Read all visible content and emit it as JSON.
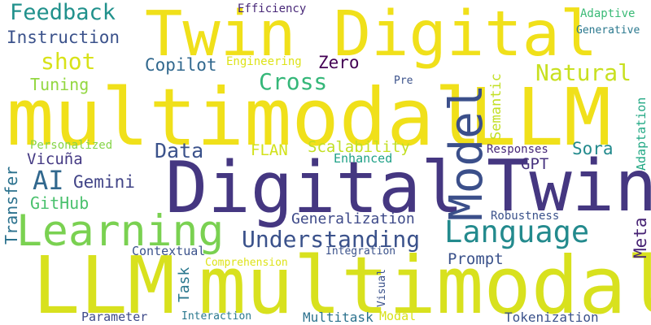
{
  "word_cloud": {
    "words": [
      {
        "id": "multimodal-1",
        "text": "multimodal",
        "color": "#f0e01a"
      },
      {
        "id": "multimodal-2",
        "text": "multimodal",
        "color": "#d8e11e"
      },
      {
        "id": "llm-1",
        "text": "LLM",
        "color": "#f0e01a"
      },
      {
        "id": "llm-2",
        "text": "LLM",
        "color": "#d8e11e"
      },
      {
        "id": "twin-digital",
        "text": "Twin Digital",
        "color": "#f0e01a"
      },
      {
        "id": "digital",
        "text": "Digital",
        "color": "#453781"
      },
      {
        "id": "twin",
        "text": "Twin",
        "color": "#453781"
      },
      {
        "id": "model",
        "text": "Model",
        "color": "#3b4f8a"
      },
      {
        "id": "learning",
        "text": "Learning",
        "color": "#7ad151"
      },
      {
        "id": "language",
        "text": "Language",
        "color": "#238a8d"
      },
      {
        "id": "understanding",
        "text": "Understanding",
        "color": "#3b528b"
      },
      {
        "id": "feedback",
        "text": "Feedback",
        "color": "#21918c"
      },
      {
        "id": "instruction",
        "text": "Instruction",
        "color": "#3b528b"
      },
      {
        "id": "shot",
        "text": "shot",
        "color": "#d8e219"
      },
      {
        "id": "copilot",
        "text": "Copilot",
        "color": "#31688e"
      },
      {
        "id": "engineering",
        "text": "Engineering",
        "color": "#dde318"
      },
      {
        "id": "zero",
        "text": "Zero",
        "color": "#440154"
      },
      {
        "id": "cross",
        "text": "Cross",
        "color": "#35b779"
      },
      {
        "id": "natural",
        "text": "Natural",
        "color": "#c8e020"
      },
      {
        "id": "tuning",
        "text": "Tuning",
        "color": "#93d741"
      },
      {
        "id": "efficiency",
        "text": "Efficiency",
        "color": "#482878"
      },
      {
        "id": "adaptive",
        "text": "Adaptive",
        "color": "#3aba76"
      },
      {
        "id": "generative",
        "text": "Generative",
        "color": "#2a788e"
      },
      {
        "id": "pre",
        "text": "Pre",
        "color": "#3b528b"
      },
      {
        "id": "semantic",
        "text": "Semantic",
        "color": "#c2df23"
      },
      {
        "id": "adaptation",
        "text": "Adaptation",
        "color": "#22a884"
      },
      {
        "id": "personalized",
        "text": "Personalized",
        "color": "#86d549"
      },
      {
        "id": "data",
        "text": "Data",
        "color": "#3b528b"
      },
      {
        "id": "flan",
        "text": "FLAN",
        "color": "#d2e21b"
      },
      {
        "id": "scalability",
        "text": "Scalability",
        "color": "#c2df23"
      },
      {
        "id": "responses",
        "text": "Responses",
        "color": "#482878"
      },
      {
        "id": "sora",
        "text": "Sora",
        "color": "#238a8d"
      },
      {
        "id": "vicuna",
        "text": "Vicuña",
        "color": "#443983"
      },
      {
        "id": "enhanced",
        "text": "Enhanced",
        "color": "#1fa187"
      },
      {
        "id": "gpt",
        "text": "GPT",
        "color": "#46327e"
      },
      {
        "id": "transfer",
        "text": "Transfer",
        "color": "#2c728e"
      },
      {
        "id": "ai",
        "text": "AI",
        "color": "#31688e"
      },
      {
        "id": "gemini",
        "text": "Gemini",
        "color": "#414487"
      },
      {
        "id": "github",
        "text": "GitHub",
        "color": "#4ac16d"
      },
      {
        "id": "generalization",
        "text": "Generalization",
        "color": "#3e4a89"
      },
      {
        "id": "robustness",
        "text": "Robustness",
        "color": "#3b528b"
      },
      {
        "id": "meta",
        "text": "Meta",
        "color": "#482475"
      },
      {
        "id": "contextual",
        "text": "Contextual",
        "color": "#3b528b"
      },
      {
        "id": "integration",
        "text": "Integration",
        "color": "#3b528b"
      },
      {
        "id": "comprehension",
        "text": "Comprehension",
        "color": "#dde318"
      },
      {
        "id": "task",
        "text": "Task",
        "color": "#2a788e"
      },
      {
        "id": "prompt",
        "text": "Prompt",
        "color": "#3b528b"
      },
      {
        "id": "visual",
        "text": "Visual",
        "color": "#3b528b"
      },
      {
        "id": "parameter",
        "text": "Parameter",
        "color": "#3e4a89"
      },
      {
        "id": "interaction",
        "text": "Interaction",
        "color": "#2a788e"
      },
      {
        "id": "multitask",
        "text": "Multitask",
        "color": "#2c728e"
      },
      {
        "id": "modal",
        "text": "Modal",
        "color": "#d8e219"
      },
      {
        "id": "tokenization",
        "text": "Tokenization",
        "color": "#3b528b"
      }
    ]
  }
}
